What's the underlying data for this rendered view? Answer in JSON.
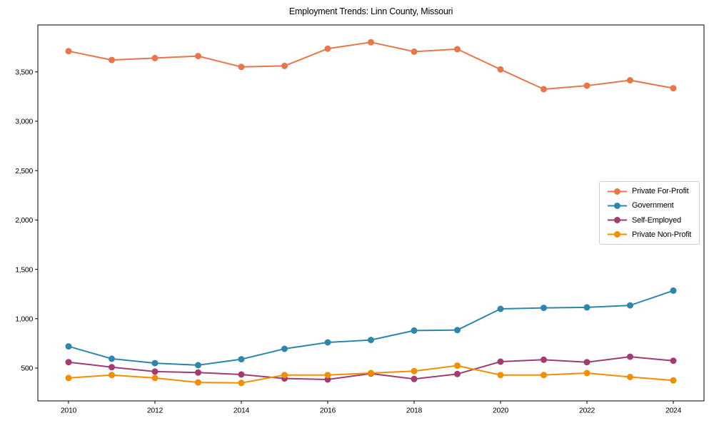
{
  "chart_data": {
    "type": "line",
    "title": "Employment Trends: Linn County, Missouri",
    "xlabel": "",
    "ylabel": "",
    "grid": false,
    "legend_position": "center right",
    "axis_color": "#000000",
    "legend_border_color": "#cccccc",
    "x": [
      2010,
      2011,
      2012,
      2013,
      2014,
      2015,
      2016,
      2017,
      2018,
      2019,
      2020,
      2021,
      2022,
      2023,
      2024
    ],
    "x_ticks": [
      2010,
      2012,
      2014,
      2016,
      2018,
      2020,
      2022,
      2024
    ],
    "x_tick_labels": [
      "2010",
      "2012",
      "2014",
      "2016",
      "2018",
      "2020",
      "2022",
      "2024"
    ],
    "y_ticks": [
      500,
      1000,
      1500,
      2000,
      2500,
      3000,
      3500
    ],
    "y_tick_labels": [
      "500",
      "1,000",
      "1,500",
      "2,000",
      "2,500",
      "3,000",
      "3,500"
    ],
    "xlim": [
      2009.29,
      2024.71
    ],
    "ylim": [
      168,
      3975
    ],
    "series": [
      {
        "name": "Private For-Profit",
        "color": "#E8764B",
        "values": [
          3710,
          3620,
          3640,
          3660,
          3550,
          3560,
          3735,
          3800,
          3705,
          3730,
          3525,
          3325,
          3360,
          3415,
          3335
        ]
      },
      {
        "name": "Government",
        "color": "#2E86AB",
        "values": [
          720,
          595,
          550,
          530,
          590,
          695,
          760,
          785,
          880,
          885,
          1100,
          1110,
          1115,
          1135,
          1285
        ]
      },
      {
        "name": "Self-Employed",
        "color": "#A23B72",
        "values": [
          560,
          510,
          465,
          455,
          435,
          395,
          385,
          445,
          390,
          440,
          565,
          585,
          560,
          615,
          575
        ]
      },
      {
        "name": "Private Non-Profit",
        "color": "#F18F01",
        "values": [
          400,
          430,
          400,
          355,
          350,
          430,
          430,
          450,
          470,
          525,
          430,
          430,
          450,
          410,
          375
        ]
      }
    ]
  }
}
